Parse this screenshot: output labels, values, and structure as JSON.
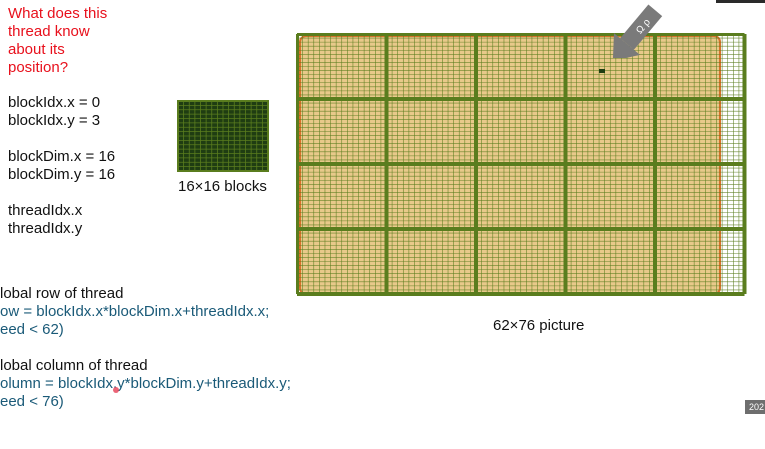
{
  "question": {
    "lines": [
      "What does this",
      "thread know",
      "about its",
      "position?"
    ]
  },
  "block_idx": {
    "x": "blockIdx.x = 0",
    "y": "blockIdx.y = 3"
  },
  "block_dim": {
    "x": "blockDim.x = 16",
    "y": "blockDim.y = 16"
  },
  "thread_idx": {
    "x": "threadIdx.x",
    "y": "threadIdx.y"
  },
  "block_label": "16×16 blocks",
  "picture_label": "62×76 picture",
  "row_formula": {
    "title": "lobal row of thread",
    "expr": "ow = blockIdx.x*blockDim.x+threadIdx.x;",
    "cond": "eed < 62)"
  },
  "col_formula": {
    "title": "lobal column of thread",
    "expr": "olumn = blockIdx.y*blockDim.y+threadIdx.y;",
    "cond": "eed < 76)"
  },
  "page_badge": "202",
  "colors": {
    "question": "#e8101c",
    "formula": "#1a5a78",
    "block_fill": "#1f3d12",
    "grid_line": "#5a7d1e",
    "picture_fill": "#e8c98a",
    "picture_border": "#d9702a",
    "arrow": "#7a7a7a"
  }
}
